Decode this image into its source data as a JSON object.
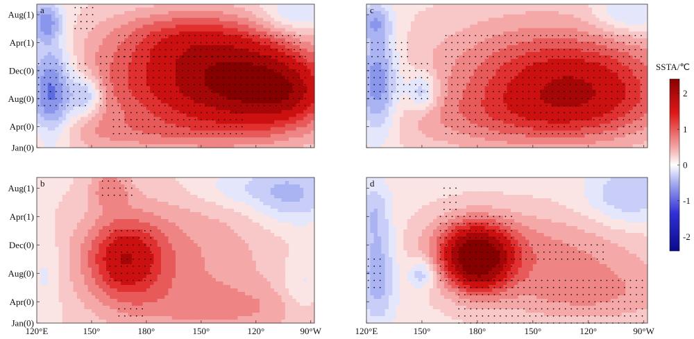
{
  "chart_data": {
    "type": "heatmap",
    "colorbar": {
      "label": "SSTA/℃",
      "ticks": [
        "-2",
        "-1",
        "0",
        "1",
        "2"
      ],
      "tick_values": [
        -2,
        -1,
        0,
        1,
        2
      ],
      "range": [
        -2.4,
        2.4
      ],
      "colormap": "blue-white-red",
      "colors": {
        "low": "#0a0a8c",
        "mid": "#ffffff",
        "high": "#8b0000"
      }
    },
    "x_ticks": [
      "120°E",
      "150°",
      "180°",
      "150°",
      "120°",
      "90°W"
    ],
    "x_tick_values": [
      120,
      150,
      180,
      210,
      240,
      270
    ],
    "x_range": [
      120,
      272
    ],
    "y_ticks": [
      "Jan(0)",
      "Apr(0)",
      "Aug(0)",
      "Dec(0)",
      "Apr(1)",
      "Aug(1)"
    ],
    "y_tick_values": [
      1,
      4,
      8,
      12,
      16,
      20
    ],
    "y_range": [
      1,
      21.5
    ],
    "stippling": "significant values",
    "panels": [
      {
        "label": "a",
        "show_x_tick_labels": false,
        "show_y_tick_labels": true,
        "fields": [
          {
            "lon": 205,
            "mon": 10,
            "slon": 45,
            "smon": 5,
            "amp": 1.1
          },
          {
            "lon": 240,
            "mon": 10.5,
            "slon": 28,
            "smon": 5,
            "amp": 0.9
          },
          {
            "lon": 258,
            "mon": 8.5,
            "slon": 16,
            "smon": 3,
            "amp": 0.5
          },
          {
            "lon": 200,
            "mon": 17,
            "slon": 30,
            "smon": 3,
            "amp": 0.6
          },
          {
            "lon": 128,
            "mon": 9,
            "slon": 9,
            "smon": 5,
            "amp": -1.2
          },
          {
            "lon": 147,
            "mon": 8.5,
            "slon": 6,
            "smon": 2,
            "amp": -0.8
          },
          {
            "lon": 125,
            "mon": 19,
            "slon": 6,
            "smon": 2,
            "amp": -0.8
          },
          {
            "lon": 262,
            "mon": 20,
            "slon": 14,
            "smon": 2,
            "amp": -0.5
          },
          {
            "lon": 165,
            "mon": 3,
            "slon": 60,
            "smon": 2,
            "amp": 0.3
          }
        ],
        "stipples": [
          {
            "lon0": 155,
            "lon1": 268,
            "mon0": 7,
            "mon1": 14
          },
          {
            "lon0": 165,
            "lon1": 265,
            "mon0": 14,
            "mon1": 17
          },
          {
            "lon0": 162,
            "lon1": 235,
            "mon0": 3,
            "mon1": 6
          },
          {
            "lon0": 121,
            "lon1": 148,
            "mon0": 7,
            "mon1": 13
          },
          {
            "lon0": 141,
            "lon1": 152,
            "mon0": 18,
            "mon1": 21
          }
        ]
      },
      {
        "label": "c",
        "show_x_tick_labels": false,
        "show_y_tick_labels": false,
        "fields": [
          {
            "lon": 220,
            "mon": 11,
            "slon": 45,
            "smon": 6,
            "amp": 0.95
          },
          {
            "lon": 240,
            "mon": 9,
            "slon": 30,
            "smon": 4,
            "amp": 0.5
          },
          {
            "lon": 200,
            "mon": 5,
            "slon": 50,
            "smon": 3,
            "amp": 0.35
          },
          {
            "lon": 126,
            "mon": 10,
            "slon": 8,
            "smon": 5,
            "amp": -1.0
          },
          {
            "lon": 150,
            "mon": 9,
            "slon": 6,
            "smon": 2,
            "amp": -0.7
          },
          {
            "lon": 125,
            "mon": 19,
            "slon": 6,
            "smon": 2,
            "amp": -0.6
          },
          {
            "lon": 262,
            "mon": 20,
            "slon": 14,
            "smon": 2,
            "amp": -0.5
          }
        ],
        "stipples": [
          {
            "lon0": 163,
            "lon1": 270,
            "mon0": 3,
            "mon1": 17
          },
          {
            "lon0": 121,
            "lon1": 153,
            "mon0": 8,
            "mon1": 13
          },
          {
            "lon0": 123,
            "lon1": 143,
            "mon0": 14,
            "mon1": 16
          }
        ]
      },
      {
        "label": "b",
        "show_x_tick_labels": true,
        "show_y_tick_labels": true,
        "fields": [
          {
            "lon": 168,
            "mon": 10,
            "slon": 15,
            "smon": 4,
            "amp": 1.0
          },
          {
            "lon": 195,
            "mon": 10,
            "slon": 40,
            "smon": 7,
            "amp": 0.5
          },
          {
            "lon": 160,
            "mon": 20,
            "slon": 8,
            "smon": 2,
            "amp": 0.5
          },
          {
            "lon": 230,
            "mon": 3,
            "slon": 40,
            "smon": 2.5,
            "amp": 0.35
          },
          {
            "lon": 260,
            "mon": 19,
            "slon": 16,
            "smon": 3,
            "amp": -0.55
          },
          {
            "lon": 230,
            "mon": 20,
            "slon": 20,
            "smon": 2,
            "amp": -0.3
          },
          {
            "lon": 265,
            "mon": 6,
            "slon": 8,
            "smon": 3,
            "amp": -0.3
          },
          {
            "lon": 125,
            "mon": 8,
            "slon": 6,
            "smon": 4,
            "amp": -0.25
          }
        ],
        "stipples": [
          {
            "lon0": 160,
            "lon1": 184,
            "mon0": 7,
            "mon1": 14
          },
          {
            "lon0": 156,
            "lon1": 172,
            "mon0": 19,
            "mon1": 21
          },
          {
            "lon0": 165,
            "lon1": 180,
            "mon0": 2,
            "mon1": 3
          }
        ]
      },
      {
        "label": "d",
        "show_x_tick_labels": true,
        "show_y_tick_labels": false,
        "fields": [
          {
            "lon": 180,
            "mon": 9,
            "slon": 12,
            "smon": 3,
            "amp": 1.2
          },
          {
            "lon": 178,
            "mon": 12,
            "slon": 16,
            "smon": 3,
            "amp": 0.9
          },
          {
            "lon": 215,
            "mon": 11,
            "slon": 40,
            "smon": 4,
            "amp": 0.5
          },
          {
            "lon": 240,
            "mon": 5,
            "slon": 35,
            "smon": 3,
            "amp": 0.45
          },
          {
            "lon": 126,
            "mon": 8,
            "slon": 7,
            "smon": 5,
            "amp": -0.7
          },
          {
            "lon": 150,
            "mon": 8,
            "slon": 5,
            "smon": 1.5,
            "amp": -0.6
          },
          {
            "lon": 262,
            "mon": 19,
            "slon": 16,
            "smon": 3,
            "amp": -0.55
          },
          {
            "lon": 124,
            "mon": 17,
            "slon": 6,
            "smon": 3,
            "amp": -0.4
          }
        ],
        "stipples": [
          {
            "lon0": 160,
            "lon1": 200,
            "mon0": 7,
            "mon1": 16
          },
          {
            "lon0": 200,
            "lon1": 250,
            "mon0": 10,
            "mon1": 12
          },
          {
            "lon0": 170,
            "lon1": 270,
            "mon0": 1,
            "mon1": 7
          },
          {
            "lon0": 121,
            "lon1": 130,
            "mon0": 6,
            "mon1": 10
          },
          {
            "lon0": 162,
            "lon1": 170,
            "mon0": 17,
            "mon1": 20
          }
        ]
      }
    ]
  }
}
